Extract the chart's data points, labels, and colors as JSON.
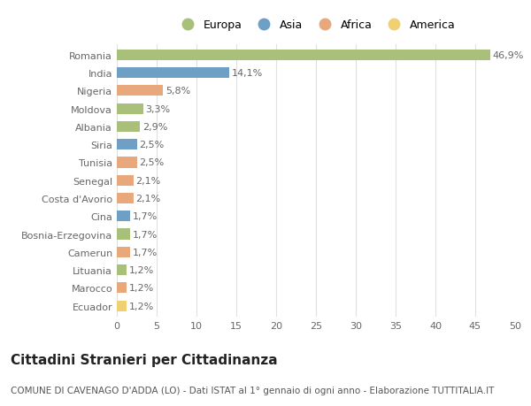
{
  "categories": [
    "Romania",
    "India",
    "Nigeria",
    "Moldova",
    "Albania",
    "Siria",
    "Tunisia",
    "Senegal",
    "Costa d'Avorio",
    "Cina",
    "Bosnia-Erzegovina",
    "Camerun",
    "Lituania",
    "Marocco",
    "Ecuador"
  ],
  "values": [
    46.9,
    14.1,
    5.8,
    3.3,
    2.9,
    2.5,
    2.5,
    2.1,
    2.1,
    1.7,
    1.7,
    1.7,
    1.2,
    1.2,
    1.2
  ],
  "labels": [
    "46,9%",
    "14,1%",
    "5,8%",
    "3,3%",
    "2,9%",
    "2,5%",
    "2,5%",
    "2,1%",
    "2,1%",
    "1,7%",
    "1,7%",
    "1,7%",
    "1,2%",
    "1,2%",
    "1,2%"
  ],
  "continents": [
    "Europa",
    "Asia",
    "Africa",
    "Europa",
    "Europa",
    "Asia",
    "Africa",
    "Africa",
    "Africa",
    "Asia",
    "Europa",
    "Africa",
    "Europa",
    "Africa",
    "America"
  ],
  "colors": {
    "Europa": "#a8c07a",
    "Asia": "#6e9fc5",
    "Africa": "#e8a87c",
    "America": "#f0d070"
  },
  "legend_items": [
    "Europa",
    "Asia",
    "Africa",
    "America"
  ],
  "legend_colors": [
    "#a8c07a",
    "#6e9fc5",
    "#e8a87c",
    "#f0d070"
  ],
  "xlim": [
    0,
    50
  ],
  "xticks": [
    0,
    5,
    10,
    15,
    20,
    25,
    30,
    35,
    40,
    45,
    50
  ],
  "title": "Cittadini Stranieri per Cittadinanza",
  "subtitle": "COMUNE DI CAVENAGO D'ADDA (LO) - Dati ISTAT al 1° gennaio di ogni anno - Elaborazione TUTTITALIA.IT",
  "bg_color": "#ffffff",
  "grid_color": "#e0e0e0",
  "bar_height": 0.6,
  "label_fontsize": 8,
  "tick_fontsize": 8,
  "title_fontsize": 11,
  "subtitle_fontsize": 7.5
}
